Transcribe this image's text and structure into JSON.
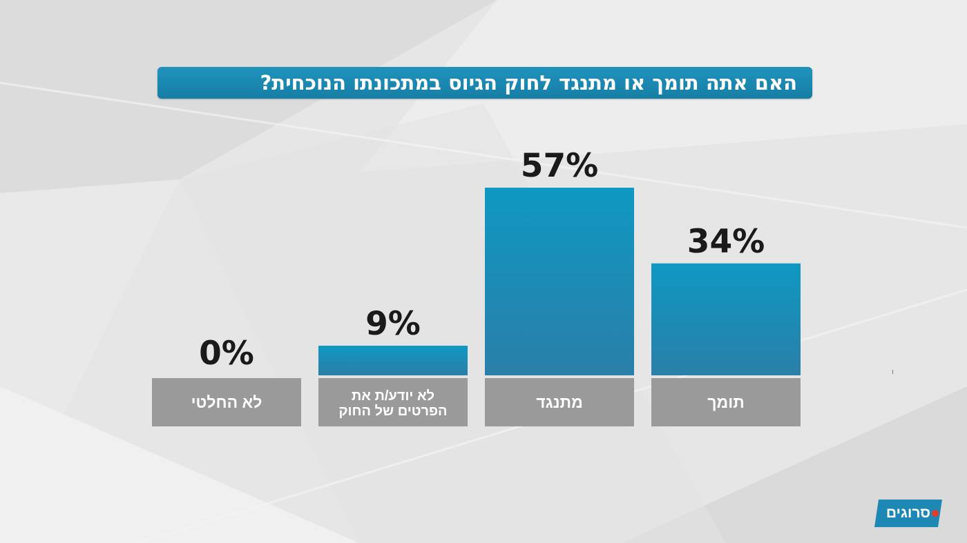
{
  "title": "האם אתה תומך או מתנגד לחוק הגיוס במתכונתו הנוכחית?",
  "brand": "סרוגים",
  "colors": {
    "bar_top": "#0f98c2",
    "bar_bottom": "#2a7fa8",
    "label_box": "#9a9a9a",
    "title_bg": "#1a88b2",
    "logo": "#1e88b4"
  },
  "chart_data": {
    "type": "bar",
    "categories": [
      "תומך",
      "מתנגד",
      "לא יודע/ת את הפרטים של החוק",
      "לא החלטי"
    ],
    "category_lines": [
      [
        "תומך"
      ],
      [
        "מתנגד"
      ],
      [
        "לא יודע/ת את",
        "הפרטים של החוק"
      ],
      [
        "לא החלטי"
      ]
    ],
    "values": [
      34,
      57,
      9,
      0
    ],
    "value_labels": [
      "34%",
      "57%",
      "9%",
      "0%"
    ],
    "unit": "%",
    "title": "האם אתה תומך או מתנגד לחוק הגיוס במתכונתו הנוכחית?",
    "xlabel": "",
    "ylabel": "",
    "ylim": [
      0,
      57
    ],
    "grid": false,
    "legend": "none",
    "order": "right-to-left"
  }
}
